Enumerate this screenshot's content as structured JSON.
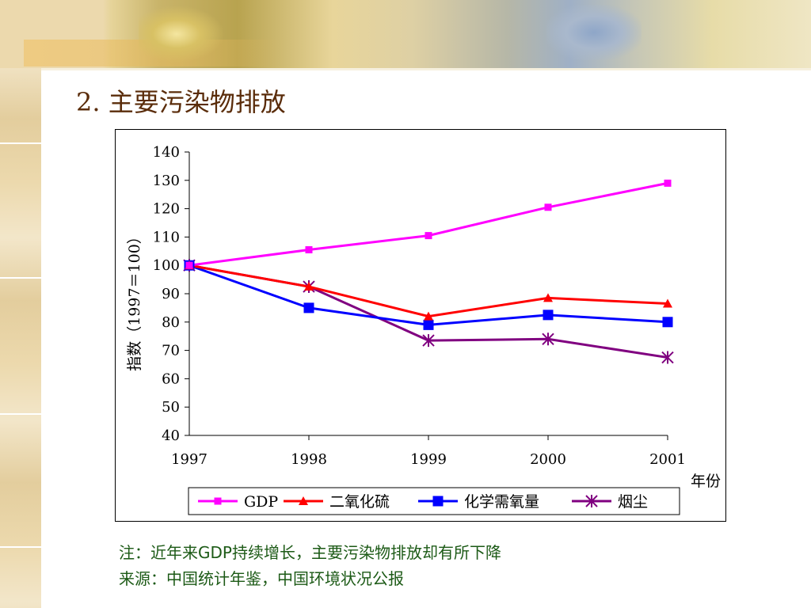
{
  "slide": {
    "title": "2. 主要污染物排放",
    "notes": [
      "注：近年来GDP持续增长，主要污染物排放却有所下降",
      "来源：中国统计年鉴，中国环境状况公报"
    ]
  },
  "colors": {
    "gdp": "#ff00ff",
    "so2": "#ff0000",
    "cod": "#0000ff",
    "dust": "#800080",
    "title_text": "#5a2c0a",
    "notes_text": "#1c5a16"
  },
  "chart_data": {
    "type": "line",
    "title": "",
    "ylabel": "指数（1997＝100）",
    "xlabel": "年份",
    "x": [
      "1997",
      "1998",
      "1999",
      "2000",
      "2001"
    ],
    "ylim": [
      40,
      140
    ],
    "yticks": [
      40,
      50,
      60,
      70,
      80,
      90,
      100,
      110,
      120,
      130,
      140
    ],
    "grid": false,
    "legend_position": "bottom",
    "series": [
      {
        "name": "GDP",
        "values": [
          100,
          105.5,
          110.5,
          120.5,
          129
        ],
        "color": "#ff00ff",
        "marker": "square"
      },
      {
        "name": "二氧化硫",
        "values": [
          100,
          92.5,
          82,
          88.5,
          86.5
        ],
        "color": "#ff0000",
        "marker": "triangle"
      },
      {
        "name": "化学需氧量",
        "values": [
          100,
          85,
          79,
          82.5,
          80
        ],
        "color": "#0000ff",
        "marker": "square-large"
      },
      {
        "name": "烟尘",
        "values": [
          100,
          92.5,
          73.5,
          74,
          67.5
        ],
        "color": "#800080",
        "marker": "star"
      }
    ]
  }
}
